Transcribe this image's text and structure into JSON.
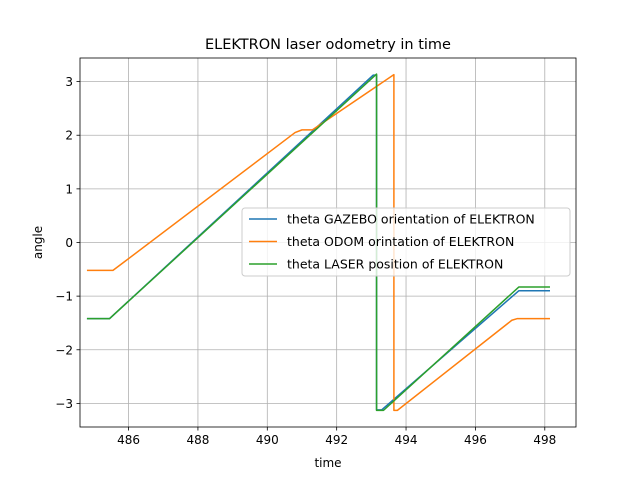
{
  "chart_data": {
    "type": "line",
    "title": "ELEKTRON laser odometry in time",
    "xlabel": "time",
    "ylabel": "angle",
    "xlim": [
      484.6,
      498.9
    ],
    "ylim": [
      -3.44,
      3.44
    ],
    "xticks": [
      486,
      488,
      490,
      492,
      494,
      496,
      498
    ],
    "xtick_labels": [
      "486",
      "488",
      "490",
      "492",
      "494",
      "496",
      "498"
    ],
    "yticks": [
      -3,
      -2,
      -1,
      0,
      1,
      2,
      3
    ],
    "ytick_labels": [
      "−3",
      "−2",
      "−1",
      "0",
      "1",
      "2",
      "3"
    ],
    "grid": true,
    "legend_position": "center-right",
    "series": [
      {
        "name": "theta GAZEBO orientation of ELEKTRON",
        "color": "#1f77b4",
        "points": [
          [
            484.8,
            -1.42
          ],
          [
            485.45,
            -1.42
          ],
          [
            493.05,
            3.12
          ],
          [
            493.15,
            3.12
          ],
          [
            493.15,
            -3.12
          ],
          [
            493.3,
            -3.12
          ],
          [
            497.25,
            -0.9
          ],
          [
            498.15,
            -0.9
          ]
        ]
      },
      {
        "name": "theta ODOM orintation of ELEKTRON",
        "color": "#ff7f0e",
        "points": [
          [
            484.8,
            -0.52
          ],
          [
            485.55,
            -0.52
          ],
          [
            485.9,
            -0.35
          ],
          [
            490.8,
            2.05
          ],
          [
            491.0,
            2.1
          ],
          [
            491.3,
            2.1
          ],
          [
            493.65,
            3.13
          ],
          [
            493.65,
            -3.13
          ],
          [
            493.75,
            -3.13
          ],
          [
            497.05,
            -1.45
          ],
          [
            497.2,
            -1.42
          ],
          [
            498.15,
            -1.42
          ]
        ]
      },
      {
        "name": "theta LASER position of ELEKTRON",
        "color": "#2ca02c",
        "points": [
          [
            484.8,
            -1.42
          ],
          [
            485.45,
            -1.42
          ],
          [
            493.15,
            3.14
          ],
          [
            493.15,
            -3.13
          ],
          [
            493.35,
            -3.13
          ],
          [
            497.25,
            -0.83
          ],
          [
            498.15,
            -0.83
          ]
        ]
      }
    ]
  }
}
